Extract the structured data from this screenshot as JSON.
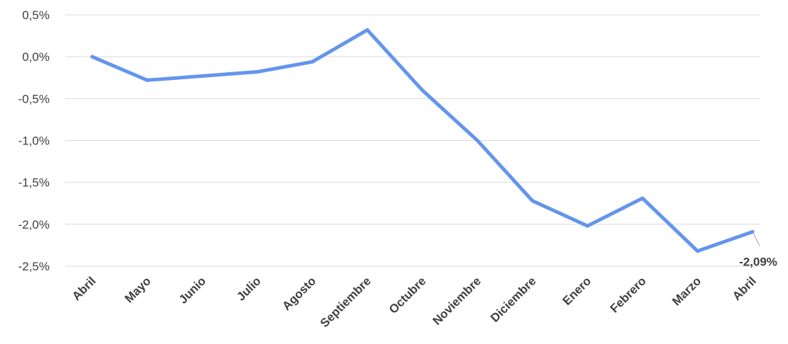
{
  "chart_data": {
    "type": "line",
    "title": "",
    "xlabel": "",
    "ylabel": "",
    "categories": [
      "Abril",
      "Mayo",
      "Junio",
      "Julio",
      "Agosto",
      "Septiembre",
      "Octubre",
      "Noviembre",
      "Diciembre",
      "Enero",
      "Febrero",
      "Marzo",
      "Abril"
    ],
    "series": [
      {
        "values": [
          0.0,
          -0.28,
          -0.23,
          -0.18,
          -0.06,
          0.32,
          -0.4,
          -1.0,
          -1.72,
          -2.02,
          -1.69,
          -2.32,
          -2.09
        ],
        "color": "#6495ED"
      }
    ],
    "ylim": [
      -2.5,
      0.5
    ],
    "yticks": [
      0.5,
      0.0,
      -0.5,
      -1.0,
      -1.5,
      -2.0,
      -2.5
    ],
    "ytick_labels": [
      "0,5%",
      "0,0%",
      "-0,5%",
      "-1,0%",
      "-1,5%",
      "-2,0%",
      "-2,5%"
    ],
    "grid": true,
    "legend": "none",
    "annotations": [
      {
        "index": 12,
        "text": "-2,09%"
      }
    ]
  }
}
